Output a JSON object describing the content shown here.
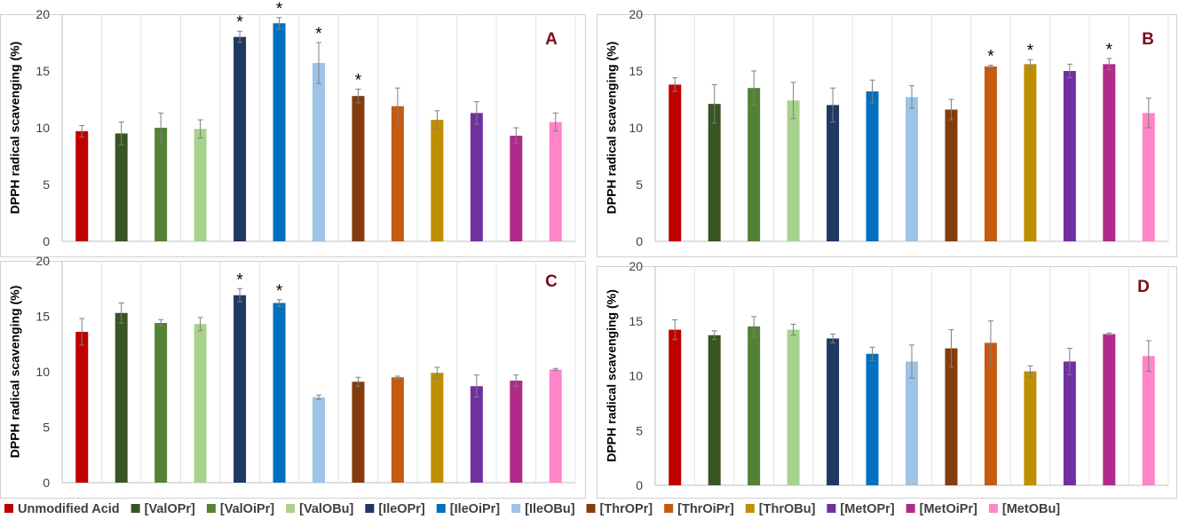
{
  "chart_data": {
    "type": "bar",
    "categories": [
      "Unmodified Acid",
      "[ValOPr]",
      "[ValOiPr]",
      "[ValOBu]",
      "[IleOPr]",
      "[IleOiPr]",
      "[IleOBu]",
      "[ThrOPr]",
      "[ThrOiPr]",
      "[ThrOBu]",
      "[MetOPr]",
      "[MetOiPr]",
      "[MetOBu]"
    ],
    "colors": [
      "#c00000",
      "#375623",
      "#548235",
      "#a9d18e",
      "#1f3864",
      "#0070c0",
      "#9dc3e6",
      "#843c0c",
      "#c55a11",
      "#bf8f00",
      "#7030a0",
      "#b02a8a",
      "#ff85c8"
    ],
    "ylabel": "DPPH radical scavenging (%)",
    "ylim": [
      0,
      20
    ],
    "yticks": [
      0,
      5,
      10,
      15,
      20
    ],
    "grid": "vertical",
    "legend": "bottom",
    "panels": [
      {
        "label": "A",
        "values": [
          9.7,
          9.5,
          10.0,
          9.9,
          18.0,
          19.2,
          15.7,
          12.8,
          11.9,
          10.7,
          11.3,
          9.3,
          10.5
        ],
        "errors": [
          0.5,
          1.0,
          1.3,
          0.8,
          0.5,
          0.5,
          1.8,
          0.6,
          1.6,
          0.8,
          1.0,
          0.7,
          0.8
        ],
        "significant": [
          "",
          "",
          "",
          "",
          "*",
          "*",
          "*",
          "*",
          "",
          "",
          "",
          "",
          ""
        ]
      },
      {
        "label": "B",
        "values": [
          13.8,
          12.1,
          13.5,
          12.4,
          12.0,
          13.2,
          12.7,
          11.6,
          15.4,
          15.6,
          15.0,
          15.6,
          11.3
        ],
        "errors": [
          0.6,
          1.7,
          1.5,
          1.6,
          1.5,
          1.0,
          1.0,
          0.9,
          0.1,
          0.4,
          0.6,
          0.5,
          1.3
        ],
        "significant": [
          "",
          "",
          "",
          "",
          "",
          "",
          "",
          "",
          "*",
          "*",
          "",
          "*",
          ""
        ]
      },
      {
        "label": "C",
        "values": [
          13.6,
          15.3,
          14.4,
          14.3,
          16.9,
          16.2,
          7.7,
          9.1,
          9.5,
          9.9,
          8.7,
          9.2,
          10.2
        ],
        "errors": [
          1.2,
          0.9,
          0.3,
          0.6,
          0.6,
          0.3,
          0.2,
          0.4,
          0.1,
          0.5,
          1.0,
          0.5,
          0.1
        ],
        "significant": [
          "",
          "",
          "",
          "",
          "*",
          "*",
          "",
          "",
          "",
          "",
          "",
          "",
          ""
        ]
      },
      {
        "label": "D",
        "values": [
          14.2,
          13.7,
          14.5,
          14.2,
          13.4,
          12.0,
          11.3,
          12.5,
          13.0,
          10.4,
          11.3,
          13.8,
          11.8
        ],
        "errors": [
          0.9,
          0.4,
          0.9,
          0.5,
          0.4,
          0.6,
          1.5,
          1.7,
          2.0,
          0.5,
          1.2,
          0.1,
          1.4
        ],
        "significant": [
          "",
          "",
          "",
          "",
          "",
          "",
          "",
          "",
          "",
          "",
          "",
          "",
          ""
        ]
      }
    ]
  }
}
